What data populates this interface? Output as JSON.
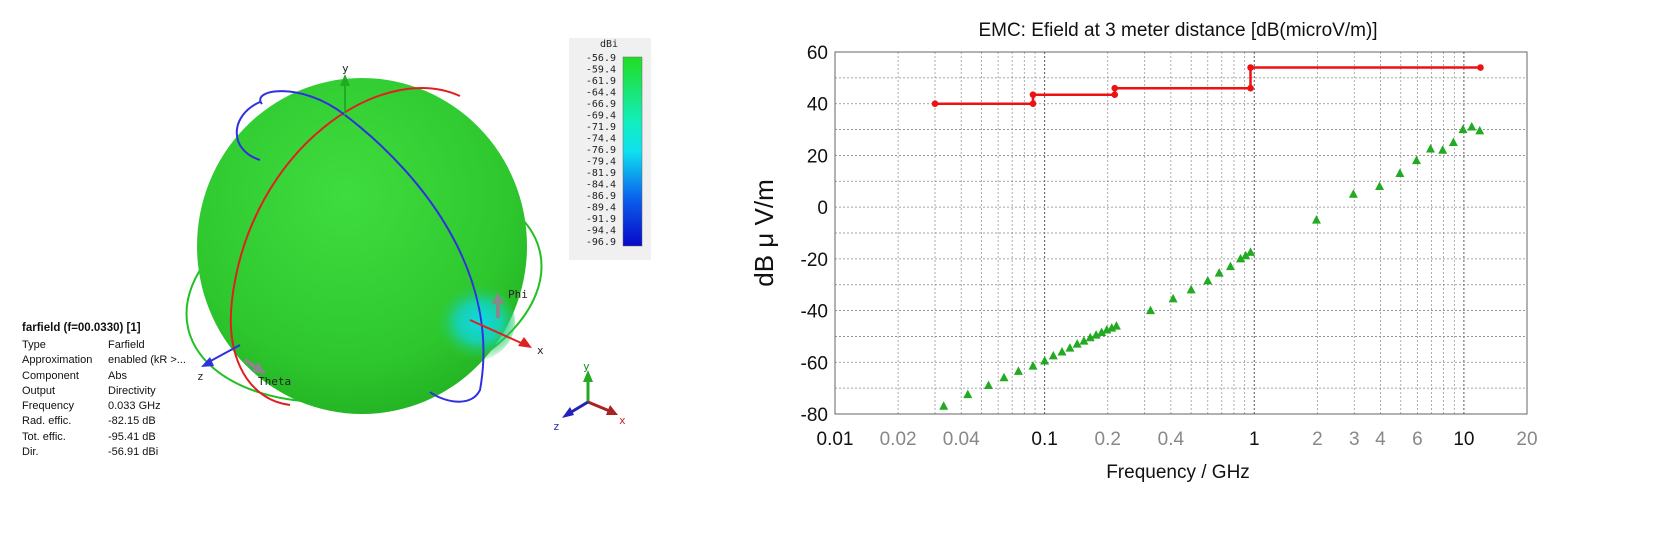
{
  "farfield": {
    "colorbar": {
      "unit": "dBi",
      "ticks": [
        "-56.9",
        "-59.4",
        "-61.9",
        "-64.4",
        "-66.9",
        "-69.4",
        "-71.9",
        "-74.4",
        "-76.9",
        "-79.4",
        "-81.9",
        "-84.4",
        "-86.9",
        "-89.4",
        "-91.9",
        "-94.4",
        "-96.9"
      ],
      "colors": [
        "#12d11a",
        "#0fd82e",
        "#0ee048",
        "#0fe568",
        "#10ea8c",
        "#12edb0",
        "#14efd0",
        "#10e8ee",
        "#0fc8f0",
        "#0ea4f0",
        "#0c80ee",
        "#0b5cea",
        "#0a3ee6",
        "#0926e0",
        "#0818d8",
        "#0810d0",
        "#0808c8"
      ]
    },
    "axis_labels": {
      "x": "x",
      "y": "y",
      "z": "z",
      "phi": "Phi",
      "theta": "Theta"
    },
    "triad_labels": {
      "x": "x",
      "y": "y",
      "z": "z"
    },
    "info": {
      "title": "farfield (f=00.0330) [1]",
      "rows": [
        {
          "key": "Type",
          "value": "Farfield"
        },
        {
          "key": "Approximation",
          "value": "enabled (kR >..."
        },
        {
          "key": "Component",
          "value": "Abs"
        },
        {
          "key": "Output",
          "value": "Directivity"
        },
        {
          "key": "Frequency",
          "value": "0.033 GHz"
        },
        {
          "key": "Rad. effic.",
          "value": "-82.15 dB"
        },
        {
          "key": "Tot. effic.",
          "value": "-95.41 dB"
        },
        {
          "key": "Dir.",
          "value": "-56.91 dBi"
        }
      ]
    },
    "colors": {
      "sphere": "#2ecc2e",
      "theta_ring": "#e02020",
      "phi_ring": "#3030e0",
      "equator_ring": "#20c020"
    }
  },
  "chart_data": {
    "type": "scatter",
    "title": "EMC: Efield at 3 meter distance [dB(microV/m)]",
    "xlabel": "Frequency / GHz",
    "ylabel": "dB μ V/m",
    "xscale": "log",
    "xlim": [
      0.01,
      20
    ],
    "ylim": [
      -80,
      60
    ],
    "yticks": [
      -80,
      -60,
      -40,
      -20,
      0,
      20,
      40,
      60
    ],
    "xticks": [
      {
        "value": 0.01,
        "label": "0.01",
        "major": true
      },
      {
        "value": 0.02,
        "label": "0.02",
        "major": false
      },
      {
        "value": 0.04,
        "label": "0.04",
        "major": false
      },
      {
        "value": 0.1,
        "label": "0.1",
        "major": true
      },
      {
        "value": 0.2,
        "label": "0.2",
        "major": false
      },
      {
        "value": 0.4,
        "label": "0.4",
        "major": false
      },
      {
        "value": 1,
        "label": "1",
        "major": true
      },
      {
        "value": 2,
        "label": "2",
        "major": false
      },
      {
        "value": 3,
        "label": "3",
        "major": false
      },
      {
        "value": 4,
        "label": "4",
        "major": false
      },
      {
        "value": 6,
        "label": "6",
        "major": false
      },
      {
        "value": 10,
        "label": "10",
        "major": true
      },
      {
        "value": 20,
        "label": "20",
        "major": false
      }
    ],
    "grid": true,
    "series": [
      {
        "kind": "step-line",
        "color": "#ee1111",
        "points": [
          {
            "x": 0.03,
            "y": 40
          },
          {
            "x": 0.088,
            "y": 40
          },
          {
            "x": 0.088,
            "y": 43.5
          },
          {
            "x": 0.216,
            "y": 43.5
          },
          {
            "x": 0.216,
            "y": 46
          },
          {
            "x": 0.96,
            "y": 46
          },
          {
            "x": 0.96,
            "y": 54
          },
          {
            "x": 12,
            "y": 54
          }
        ]
      },
      {
        "kind": "triangles",
        "color": "#22aa22",
        "points": [
          {
            "x": 0.033,
            "y": -77
          },
          {
            "x": 0.043,
            "y": -72.5
          },
          {
            "x": 0.054,
            "y": -69
          },
          {
            "x": 0.064,
            "y": -66
          },
          {
            "x": 0.075,
            "y": -63.5
          },
          {
            "x": 0.088,
            "y": -61.5
          },
          {
            "x": 0.1,
            "y": -59.5
          },
          {
            "x": 0.11,
            "y": -57.5
          },
          {
            "x": 0.121,
            "y": -56
          },
          {
            "x": 0.132,
            "y": -54.5
          },
          {
            "x": 0.143,
            "y": -53
          },
          {
            "x": 0.154,
            "y": -51.8
          },
          {
            "x": 0.165,
            "y": -50.5
          },
          {
            "x": 0.176,
            "y": -49.5
          },
          {
            "x": 0.187,
            "y": -48.5
          },
          {
            "x": 0.198,
            "y": -47.5
          },
          {
            "x": 0.209,
            "y": -46.8
          },
          {
            "x": 0.22,
            "y": -46
          },
          {
            "x": 0.32,
            "y": -40
          },
          {
            "x": 0.41,
            "y": -35.5
          },
          {
            "x": 0.5,
            "y": -32
          },
          {
            "x": 0.6,
            "y": -28.5
          },
          {
            "x": 0.68,
            "y": -25.5
          },
          {
            "x": 0.77,
            "y": -23
          },
          {
            "x": 0.86,
            "y": -20
          },
          {
            "x": 0.91,
            "y": -18.8
          },
          {
            "x": 0.96,
            "y": -17.5
          },
          {
            "x": 1.98,
            "y": -5
          },
          {
            "x": 2.97,
            "y": 5
          },
          {
            "x": 3.96,
            "y": 8
          },
          {
            "x": 4.95,
            "y": 13
          },
          {
            "x": 5.94,
            "y": 18
          },
          {
            "x": 6.93,
            "y": 22.5
          },
          {
            "x": 7.92,
            "y": 22
          },
          {
            "x": 8.91,
            "y": 25
          },
          {
            "x": 9.9,
            "y": 30
          },
          {
            "x": 10.9,
            "y": 31
          },
          {
            "x": 11.9,
            "y": 29.5
          }
        ]
      }
    ]
  }
}
